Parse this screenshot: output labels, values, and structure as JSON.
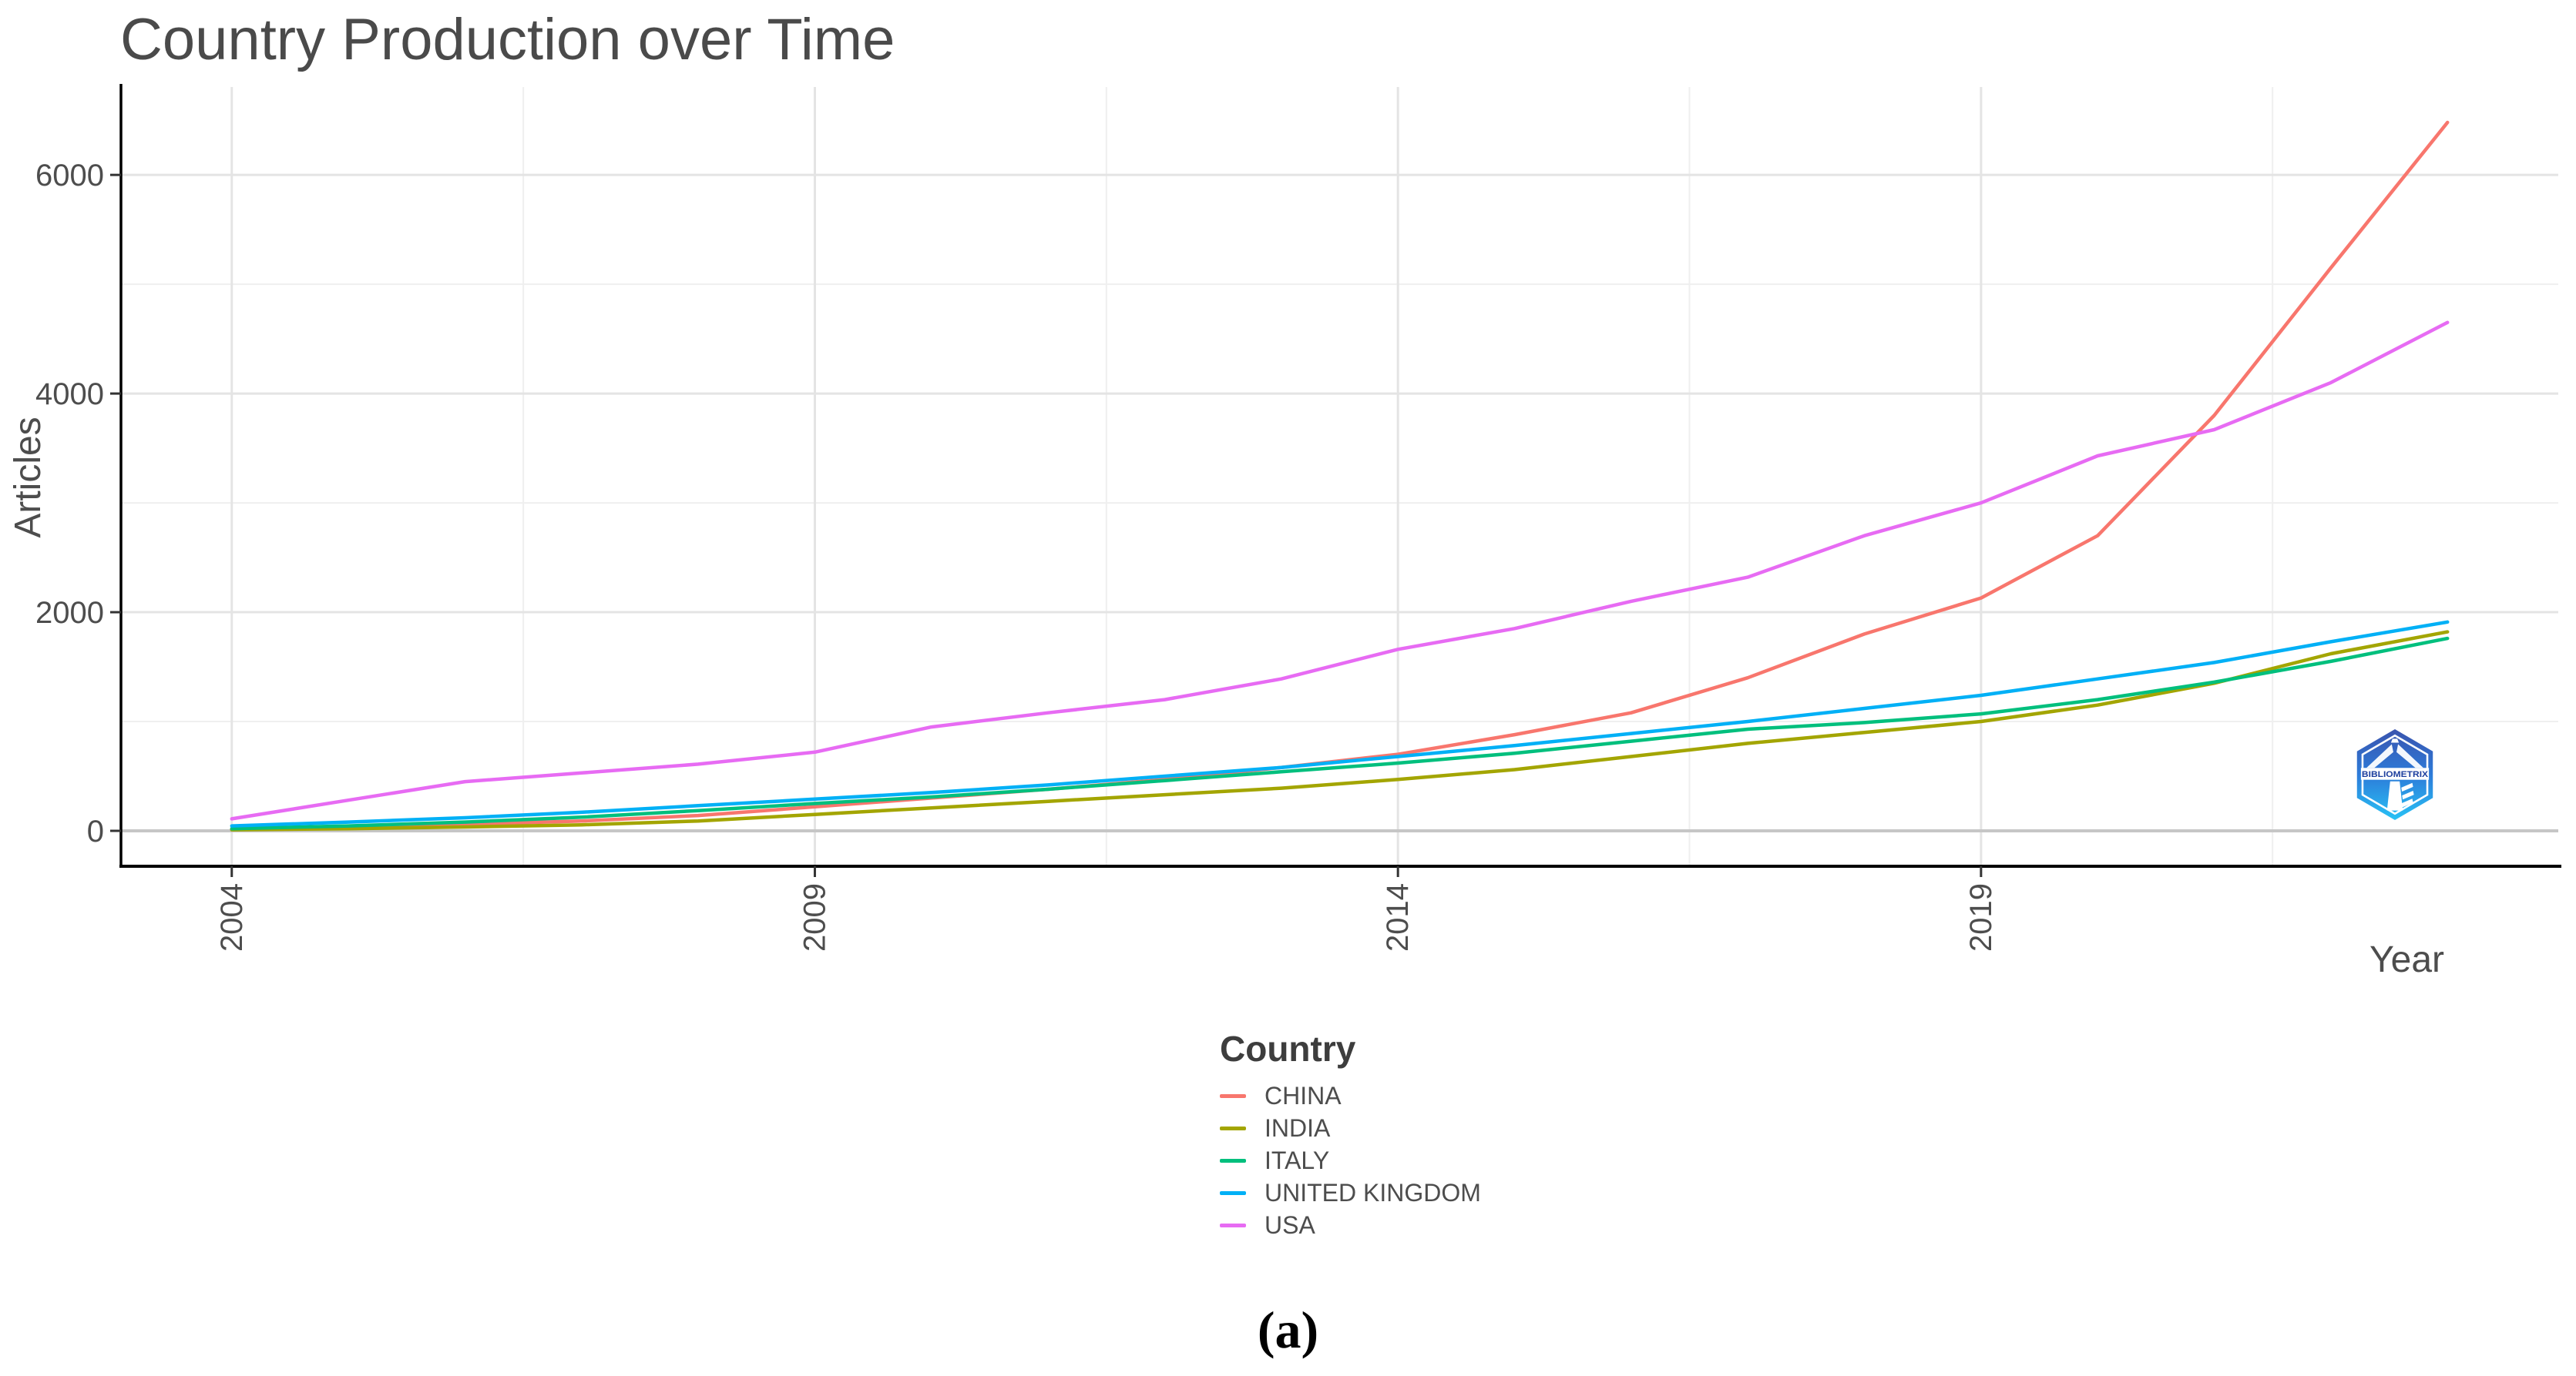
{
  "page": {
    "caption": "(a)",
    "background": "#ffffff"
  },
  "watermark": {
    "text": "BIBLIOMETRIX"
  },
  "colors": {
    "title_text": "#4a4a4a",
    "axis_text": "#4d4d4d",
    "axis_line": "#000000",
    "grid_major": "#e4e4e4",
    "grid_minor": "#efefef",
    "zero_line": "#c6c6c6",
    "legend_title_text": "#3d3d3d",
    "legend_label_text": "#4d4d4d"
  },
  "chart_data": {
    "type": "line",
    "title": "Country Production over Time",
    "xlabel": "Year",
    "ylabel": "Articles",
    "legend_title": "Country",
    "legend_position": "bottom-center",
    "grid": true,
    "x": [
      2004,
      2005,
      2006,
      2007,
      2008,
      2009,
      2010,
      2011,
      2012,
      2013,
      2014,
      2015,
      2016,
      2017,
      2018,
      2019,
      2020,
      2021,
      2022,
      2023
    ],
    "series": [
      {
        "name": "CHINA",
        "color": "#F8766D",
        "values": [
          15,
          35,
          60,
          90,
          140,
          220,
          300,
          380,
          470,
          580,
          700,
          880,
          1080,
          1400,
          1800,
          2130,
          2700,
          3800,
          5150,
          6480
        ]
      },
      {
        "name": "INDIA",
        "color": "#A3A500",
        "values": [
          10,
          20,
          35,
          55,
          90,
          150,
          210,
          270,
          330,
          390,
          470,
          560,
          680,
          800,
          900,
          1000,
          1150,
          1350,
          1620,
          1820
        ]
      },
      {
        "name": "ITALY",
        "color": "#00BF7D",
        "values": [
          20,
          45,
          80,
          125,
          185,
          250,
          310,
          380,
          460,
          540,
          620,
          710,
          820,
          930,
          990,
          1070,
          1200,
          1360,
          1550,
          1760
        ]
      },
      {
        "name": "UNITED KINGDOM",
        "color": "#00B0F6",
        "values": [
          45,
          80,
          120,
          170,
          230,
          290,
          350,
          420,
          500,
          580,
          680,
          780,
          890,
          1000,
          1120,
          1240,
          1390,
          1540,
          1730,
          1910
        ]
      },
      {
        "name": "USA",
        "color": "#E76BF3",
        "values": [
          110,
          280,
          450,
          530,
          610,
          720,
          950,
          1080,
          1200,
          1390,
          1660,
          1850,
          2100,
          2320,
          2700,
          3000,
          3430,
          3670,
          4100,
          4650
        ]
      }
    ],
    "x_ticks": [
      2004,
      2009,
      2014,
      2019
    ],
    "x_minor": [
      2006.5,
      2011.5,
      2016.5,
      2021.5
    ],
    "y_ticks": [
      0,
      2000,
      4000,
      6000
    ],
    "y_minor": [
      1000,
      3000,
      5000
    ],
    "xlim": [
      2003.05,
      2023.95
    ],
    "ylim": [
      -324,
      6804
    ]
  }
}
